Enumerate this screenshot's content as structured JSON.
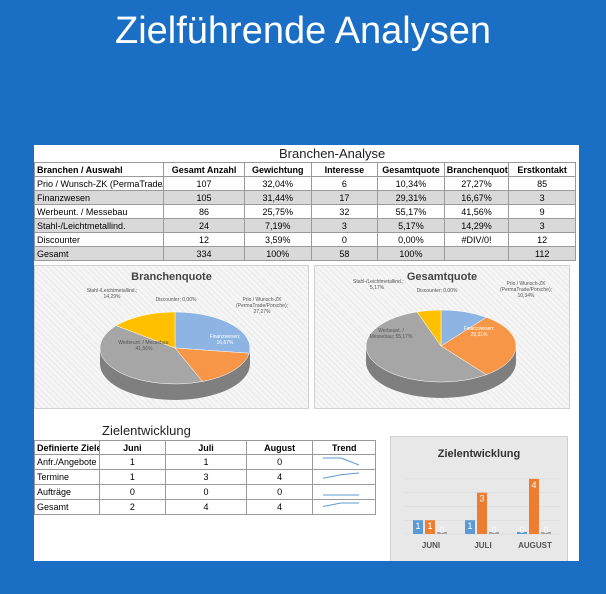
{
  "page_title": "Zielführende Analysen",
  "branchen": {
    "title": "Branchen-Analyse",
    "headers": [
      "Branchen / Auswahl",
      "Gesamt Anzahl",
      "Gewichtung",
      "Interesse",
      "Gesamtquote",
      "Branchenquote",
      "Erstkontakt"
    ],
    "rows": [
      [
        "Prio / Wunsch-ZK (PermaTrade/Po",
        "107",
        "32,04%",
        "6",
        "10,34%",
        "27,27%",
        "85"
      ],
      [
        "Finanzwesen",
        "105",
        "31,44%",
        "17",
        "29,31%",
        "16,67%",
        "3"
      ],
      [
        "Werbeunt. / Messebau",
        "86",
        "25,75%",
        "32",
        "55,17%",
        "41,56%",
        "9"
      ],
      [
        "Stahl-/Leichtmetallind.",
        "24",
        "7,19%",
        "3",
        "5,17%",
        "14,29%",
        "3"
      ],
      [
        "Discounter",
        "12",
        "3,59%",
        "0",
        "0,00%",
        "#DIV/0!",
        "12"
      ],
      [
        "Gesamt",
        "334",
        "100%",
        "58",
        "100%",
        "",
        "112"
      ]
    ]
  },
  "pie_branchenquote": {
    "title": "Branchenquote",
    "labels": {
      "stahl": "Stahl-/Leichtmetallind.; 14,29%",
      "discounter": "Discounter; 0,00%",
      "prio": "Prio / Wunsch-ZK (PermaTrade/Porsche); 27,27%",
      "finanz": "Finanzwesen; 16,67%",
      "werbe": "Werbeunt. / Messebau; 41,56%"
    }
  },
  "pie_gesamtquote": {
    "title": "Gesamtquote",
    "labels": {
      "stahl": "Stahl-/Leichtmetallind.; 5,17%",
      "discounter": "Discounter; 0,00%",
      "prio": "Prio / Wunsch-ZK (PermaTrade/Porsche); 10,34%",
      "finanz": "Finanzwesen; 29,31%",
      "werbe": "Werbeunt. / Messebau; 55,17%"
    }
  },
  "ziel": {
    "title": "Zielentwicklung",
    "headers": [
      "Definierte Ziele",
      "Juni",
      "Juli",
      "August",
      "Trend"
    ],
    "rows": [
      [
        "Anfr./Angebote",
        "1",
        "1",
        "0"
      ],
      [
        "Termine",
        "1",
        "3",
        "4"
      ],
      [
        "Aufträge",
        "0",
        "0",
        "0"
      ],
      [
        "Gesamt",
        "2",
        "4",
        "4"
      ]
    ]
  },
  "chart_data": [
    {
      "type": "pie",
      "title": "Branchenquote",
      "categories": [
        "Prio / Wunsch-ZK (PermaTrade/Porsche)",
        "Finanzwesen",
        "Werbeunt. / Messebau",
        "Stahl-/Leichtmetallind.",
        "Discounter"
      ],
      "values": [
        27.27,
        16.67,
        41.56,
        14.29,
        0.0
      ],
      "colors": [
        "#8db4e2",
        "#f79646",
        "#a6a6a6",
        "#ffc000",
        "#4f81bd"
      ]
    },
    {
      "type": "pie",
      "title": "Gesamtquote",
      "categories": [
        "Prio / Wunsch-ZK (PermaTrade/Porsche)",
        "Finanzwesen",
        "Werbeunt. / Messebau",
        "Stahl-/Leichtmetallind.",
        "Discounter"
      ],
      "values": [
        10.34,
        29.31,
        55.17,
        5.17,
        0.0
      ],
      "colors": [
        "#8db4e2",
        "#f79646",
        "#a6a6a6",
        "#ffc000",
        "#4f81bd"
      ]
    },
    {
      "type": "bar",
      "title": "Zielentwicklung",
      "categories": [
        "JUNI",
        "JULI",
        "AUGUST"
      ],
      "series": [
        {
          "values": [
            1,
            1,
            0
          ],
          "color": "#5b9bd5"
        },
        {
          "values": [
            1,
            3,
            4
          ],
          "color": "#ed7d31"
        },
        {
          "values": [
            0,
            0,
            0
          ],
          "color": "#a5a5a5"
        }
      ],
      "ylim": [
        0,
        4.5
      ]
    }
  ]
}
